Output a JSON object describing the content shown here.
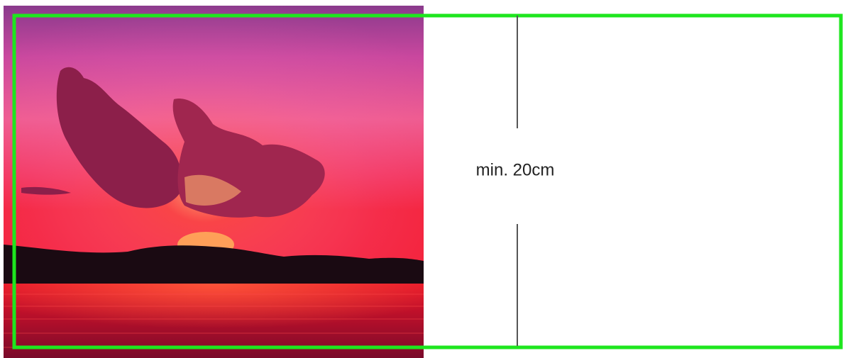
{
  "annotation": {
    "label": "min. 20cm"
  }
}
